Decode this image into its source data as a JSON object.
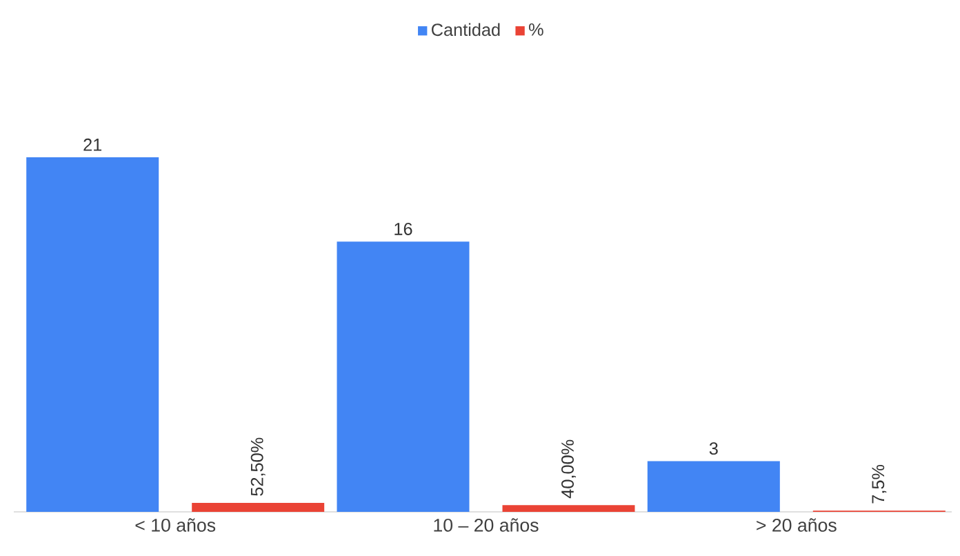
{
  "chart_data": {
    "type": "bar",
    "categories": [
      "< 10 años",
      "10 – 20 años",
      "> 20 años"
    ],
    "series": [
      {
        "name": "Cantidad",
        "color": "#4285f4",
        "values": [
          21,
          16,
          3
        ],
        "value_labels": [
          "21",
          "16",
          "3"
        ]
      },
      {
        "name": "%",
        "color": "#ea4335",
        "values": [
          0.525,
          0.4,
          0.075
        ],
        "value_labels": [
          "52,50%",
          "40,00%",
          "7,5%"
        ]
      }
    ],
    "legend": "top"
  }
}
